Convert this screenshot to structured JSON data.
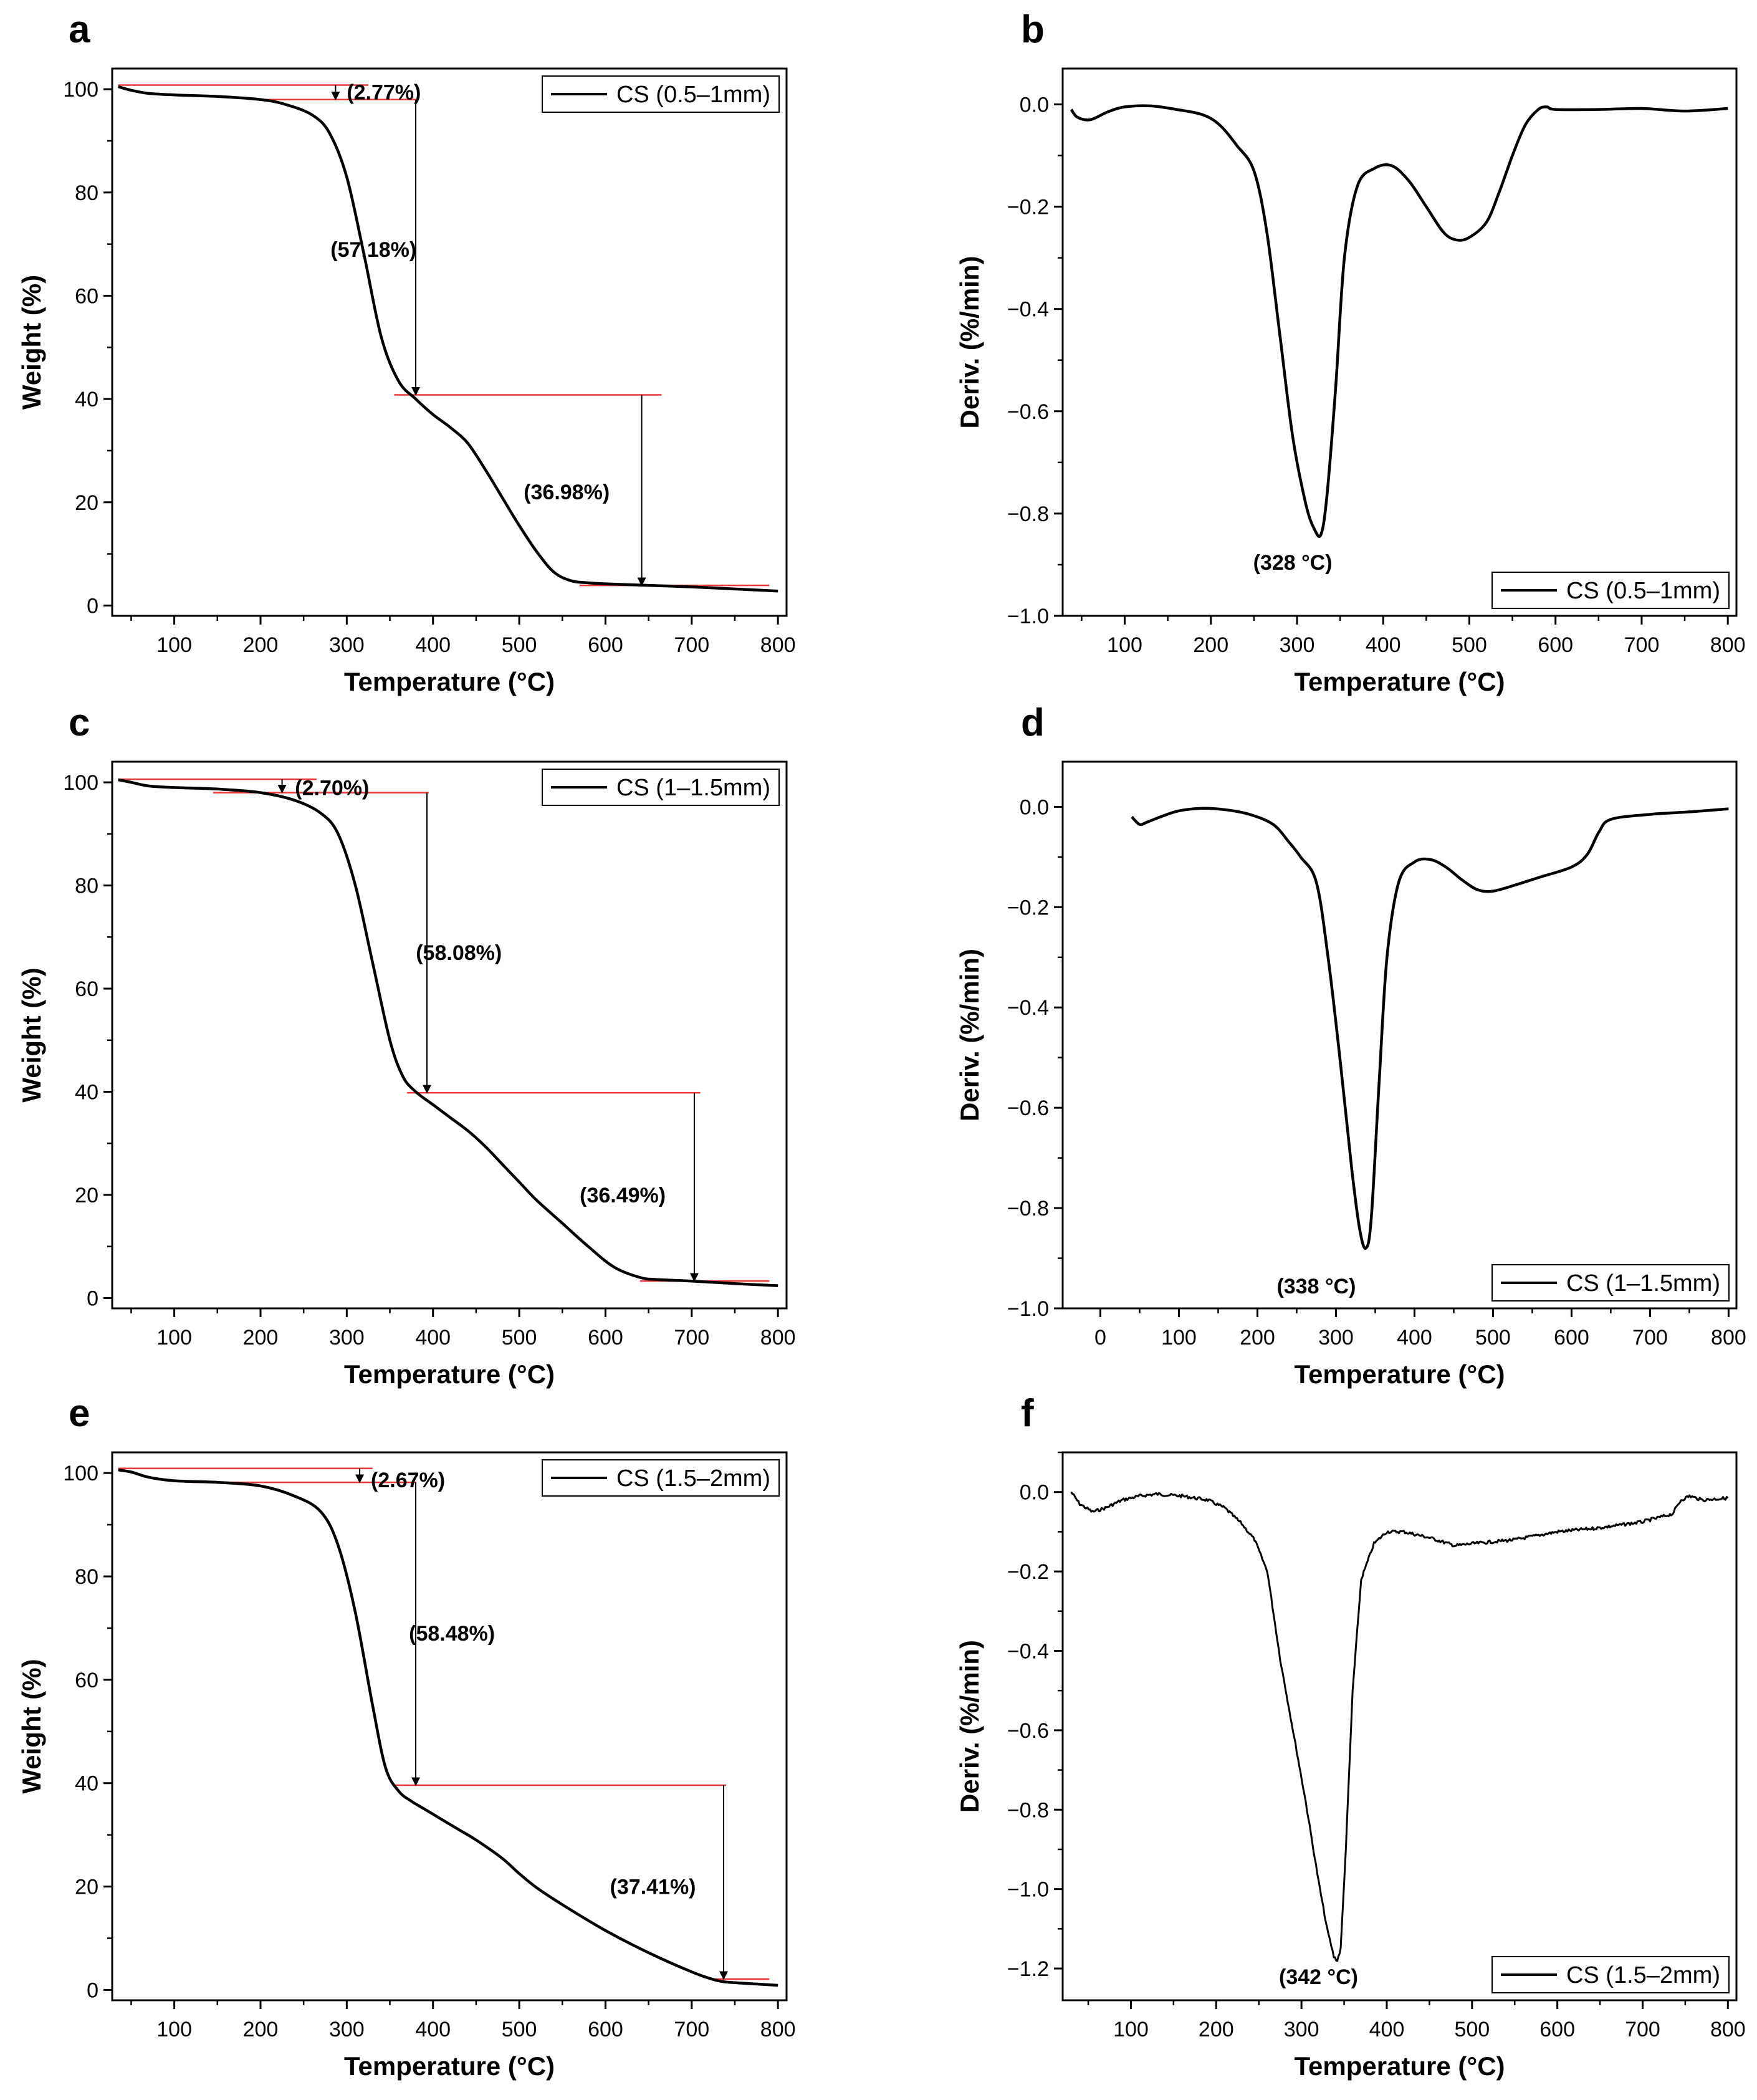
{
  "chart_data": [
    {
      "id": "a",
      "panel_label": "a",
      "type": "line",
      "xlabel": "Temperature (°C)",
      "ylabel": "Weight (%)",
      "xlim": [
        28,
        810
      ],
      "ylim": [
        -2,
        104
      ],
      "xticks": [
        100,
        200,
        300,
        400,
        500,
        600,
        700,
        800
      ],
      "yticks": [
        0,
        20,
        40,
        60,
        80,
        100
      ],
      "legend": "CS (0.5–1mm)",
      "legend_position": "top-right",
      "series": [
        {
          "name": "CS (0.5–1mm)",
          "x": [
            35,
            50,
            70,
            100,
            150,
            200,
            230,
            260,
            280,
            300,
            320,
            340,
            360,
            380,
            400,
            420,
            440,
            460,
            480,
            500,
            520,
            540,
            560,
            580,
            600,
            650,
            700,
            750,
            800
          ],
          "y": [
            100.5,
            99.8,
            99.2,
            98.9,
            98.6,
            98.0,
            97.0,
            95.0,
            91.5,
            83.0,
            68.0,
            52.0,
            43.5,
            40.0,
            37.0,
            34.5,
            31.5,
            26.5,
            21.0,
            15.5,
            10.5,
            6.5,
            4.8,
            4.4,
            4.2,
            3.9,
            3.6,
            3.2,
            2.8
          ]
        }
      ],
      "ref_lines": [
        {
          "y": 100.8,
          "x1": 35,
          "x2": 325
        },
        {
          "y": 98.0,
          "x1": 190,
          "x2": 380
        },
        {
          "y": 40.8,
          "x1": 355,
          "x2": 665
        },
        {
          "y": 3.9,
          "x1": 570,
          "x2": 790
        }
      ],
      "arrows": [
        {
          "x": 287,
          "y1": 100.8,
          "y2": 98.0
        },
        {
          "x": 380,
          "y1": 98.0,
          "y2": 40.8
        },
        {
          "x": 642,
          "y1": 40.8,
          "y2": 3.9
        }
      ],
      "annotations": [
        {
          "text": "(2.77%)",
          "x": 343,
          "y": 99.5
        },
        {
          "text": "(57.18%)",
          "x": 331,
          "y": 69
        },
        {
          "text": "(36.98%)",
          "x": 555,
          "y": 22
        }
      ]
    },
    {
      "id": "b",
      "panel_label": "b",
      "type": "line",
      "xlabel": "Temperature (°C)",
      "ylabel": "Deriv. (%/min)",
      "xlim": [
        28,
        810
      ],
      "ylim": [
        -1.0,
        0.07
      ],
      "xticks": [
        100,
        200,
        300,
        400,
        500,
        600,
        700,
        800
      ],
      "yticks": [
        0.0,
        -0.2,
        -0.4,
        -0.6,
        -0.8,
        -1.0
      ],
      "ytick_labels": [
        "0.0",
        "−0.2",
        "−0.4",
        "−0.6",
        "−0.8",
        "−1.0"
      ],
      "legend": "CS (0.5–1mm)",
      "legend_position": "bottom-right",
      "series": [
        {
          "name": "CS (0.5–1mm)",
          "x": [
            38,
            45,
            60,
            80,
            100,
            130,
            160,
            190,
            210,
            230,
            250,
            265,
            280,
            295,
            310,
            320,
            328,
            335,
            345,
            355,
            370,
            390,
            410,
            430,
            450,
            470,
            485,
            500,
            520,
            535,
            550,
            565,
            580,
            590,
            600,
            650,
            700,
            750,
            800
          ],
          "y": [
            -0.01,
            -0.025,
            -0.03,
            -0.015,
            -0.005,
            -0.003,
            -0.01,
            -0.02,
            -0.04,
            -0.08,
            -0.13,
            -0.25,
            -0.45,
            -0.65,
            -0.78,
            -0.83,
            -0.84,
            -0.76,
            -0.55,
            -0.3,
            -0.16,
            -0.125,
            -0.12,
            -0.15,
            -0.2,
            -0.25,
            -0.265,
            -0.26,
            -0.23,
            -0.17,
            -0.1,
            -0.04,
            -0.01,
            -0.005,
            -0.01,
            -0.01,
            -0.008,
            -0.013,
            -0.008
          ]
        }
      ],
      "annotations": [
        {
          "text": "(328 °C)",
          "x": 295,
          "y": -0.895
        }
      ]
    },
    {
      "id": "c",
      "panel_label": "c",
      "type": "line",
      "xlabel": "Temperature (°C)",
      "ylabel": "Weight (%)",
      "xlim": [
        28,
        810
      ],
      "ylim": [
        -2,
        104
      ],
      "xticks": [
        100,
        200,
        300,
        400,
        500,
        600,
        700,
        800
      ],
      "yticks": [
        0,
        20,
        40,
        60,
        80,
        100
      ],
      "legend": "CS (1–1.5mm)",
      "legend_position": "top-right",
      "series": [
        {
          "name": "CS (1–1.5mm)",
          "x": [
            35,
            50,
            70,
            100,
            150,
            200,
            240,
            270,
            290,
            310,
            330,
            350,
            365,
            380,
            400,
            420,
            440,
            460,
            480,
            500,
            520,
            550,
            580,
            610,
            640,
            660,
            700,
            750,
            800
          ],
          "y": [
            100.5,
            100,
            99.3,
            99.0,
            98.7,
            98.0,
            96.5,
            94.0,
            90.0,
            80.0,
            65.0,
            50.0,
            43.0,
            40.0,
            37.5,
            35.0,
            32.5,
            29.5,
            26.0,
            22.5,
            19.0,
            14.5,
            10.0,
            6.0,
            4.0,
            3.6,
            3.3,
            2.8,
            2.4
          ]
        }
      ],
      "ref_lines": [
        {
          "y": 100.6,
          "x1": 35,
          "x2": 265
        },
        {
          "y": 98.0,
          "x1": 145,
          "x2": 395
        },
        {
          "y": 39.8,
          "x1": 370,
          "x2": 710
        },
        {
          "y": 3.3,
          "x1": 640,
          "x2": 790
        }
      ],
      "arrows": [
        {
          "x": 225,
          "y1": 100.6,
          "y2": 98.0
        },
        {
          "x": 393,
          "y1": 98.0,
          "y2": 39.8
        },
        {
          "x": 703,
          "y1": 39.8,
          "y2": 3.3
        }
      ],
      "annotations": [
        {
          "text": "(2.70%)",
          "x": 283,
          "y": 99.0
        },
        {
          "text": "(58.08%)",
          "x": 430,
          "y": 67
        },
        {
          "text": "(36.49%)",
          "x": 620,
          "y": 20
        }
      ]
    },
    {
      "id": "d",
      "panel_label": "d",
      "type": "line",
      "xlabel": "Temperature (°C)",
      "ylabel": "Deriv. (%/min)",
      "xlim": [
        -48,
        810
      ],
      "ylim": [
        -1.0,
        0.09
      ],
      "xticks": [
        0,
        100,
        200,
        300,
        400,
        500,
        600,
        700,
        800
      ],
      "yticks": [
        0.0,
        -0.2,
        -0.4,
        -0.6,
        -0.8,
        -1.0
      ],
      "ytick_labels": [
        "0.0",
        "−0.2",
        "−0.4",
        "−0.6",
        "−0.8",
        "−1.0"
      ],
      "legend": "CS (1–1.5mm)",
      "legend_position": "bottom-right",
      "series": [
        {
          "name": "CS (1–1.5mm)",
          "x": [
            40,
            50,
            60,
            80,
            100,
            130,
            160,
            190,
            220,
            240,
            255,
            275,
            290,
            305,
            320,
            330,
            338,
            345,
            355,
            365,
            380,
            400,
            420,
            440,
            460,
            480,
            500,
            530,
            560,
            600,
            620,
            635,
            650,
            700,
            750,
            800
          ],
          "y": [
            -0.02,
            -0.035,
            -0.03,
            -0.018,
            -0.008,
            -0.003,
            -0.006,
            -0.015,
            -0.035,
            -0.07,
            -0.1,
            -0.15,
            -0.3,
            -0.5,
            -0.72,
            -0.84,
            -0.88,
            -0.82,
            -0.55,
            -0.3,
            -0.15,
            -0.11,
            -0.105,
            -0.12,
            -0.145,
            -0.165,
            -0.168,
            -0.155,
            -0.14,
            -0.12,
            -0.095,
            -0.05,
            -0.025,
            -0.015,
            -0.01,
            -0.004
          ]
        }
      ],
      "annotations": [
        {
          "text": "(338 °C)",
          "x": 275,
          "y": -0.955
        }
      ]
    },
    {
      "id": "e",
      "panel_label": "e",
      "type": "line",
      "xlabel": "Temperature (°C)",
      "ylabel": "Weight (%)",
      "xlim": [
        28,
        810
      ],
      "ylim": [
        -2,
        104
      ],
      "xticks": [
        100,
        200,
        300,
        400,
        500,
        600,
        700,
        800
      ],
      "yticks": [
        0,
        20,
        40,
        60,
        80,
        100
      ],
      "legend": "CS (1.5–2mm)",
      "legend_position": "top-right",
      "series": [
        {
          "name": "CS (1.5–2mm)",
          "x": [
            35,
            50,
            70,
            100,
            150,
            200,
            240,
            270,
            290,
            310,
            330,
            345,
            360,
            375,
            390,
            410,
            430,
            450,
            480,
            500,
            520,
            550,
            600,
            650,
            700,
            730,
            750,
            780,
            800
          ],
          "y": [
            100.6,
            100.2,
            99.2,
            98.5,
            98.2,
            97.5,
            95.5,
            92.5,
            86.0,
            73.0,
            55.0,
            43.0,
            38.5,
            36.5,
            35.0,
            33.0,
            31.0,
            29.0,
            25.5,
            22.5,
            19.8,
            16.5,
            11.5,
            7.2,
            3.5,
            1.8,
            1.4,
            1.1,
            0.9
          ]
        }
      ],
      "ref_lines": [
        {
          "y": 100.9,
          "x1": 35,
          "x2": 330
        },
        {
          "y": 98.2,
          "x1": 120,
          "x2": 380
        },
        {
          "y": 39.6,
          "x1": 355,
          "x2": 740
        },
        {
          "y": 2.1,
          "x1": 725,
          "x2": 790
        }
      ],
      "arrows": [
        {
          "x": 315,
          "y1": 100.9,
          "y2": 98.2
        },
        {
          "x": 380,
          "y1": 98.2,
          "y2": 39.6
        },
        {
          "x": 737,
          "y1": 39.6,
          "y2": 2.1
        }
      ],
      "annotations": [
        {
          "text": "(2.67%)",
          "x": 371,
          "y": 98.7
        },
        {
          "text": "(58.48%)",
          "x": 422,
          "y": 69
        },
        {
          "text": "(37.41%)",
          "x": 655,
          "y": 20
        }
      ]
    },
    {
      "id": "f",
      "panel_label": "f",
      "type": "line",
      "xlabel": "Temperature (°C)",
      "ylabel": "Deriv. (%/min)",
      "xlim": [
        20,
        810
      ],
      "ylim": [
        -1.28,
        0.1
      ],
      "xticks": [
        100,
        200,
        300,
        400,
        500,
        600,
        700,
        800
      ],
      "yticks": [
        0.0,
        -0.2,
        -0.4,
        -0.6,
        -0.8,
        -1.0,
        -1.2
      ],
      "ytick_labels": [
        "0.0",
        "−0.2",
        "−0.4",
        "−0.6",
        "−0.8",
        "−1.0",
        "−1.2"
      ],
      "legend": "CS (1.5–2mm)",
      "legend_position": "bottom-right",
      "noisy": true,
      "series": [
        {
          "name": "CS (1.5–2mm)",
          "x": [
            30,
            40,
            55,
            70,
            90,
            110,
            130,
            160,
            190,
            210,
            230,
            245,
            260,
            275,
            290,
            305,
            320,
            330,
            338,
            342,
            346,
            352,
            360,
            370,
            385,
            400,
            420,
            450,
            480,
            500,
            550,
            600,
            650,
            700,
            735,
            745,
            755,
            770,
            800
          ],
          "y": [
            0.0,
            -0.03,
            -0.05,
            -0.04,
            -0.02,
            -0.01,
            -0.005,
            -0.01,
            -0.02,
            -0.04,
            -0.08,
            -0.12,
            -0.2,
            -0.42,
            -0.6,
            -0.78,
            -0.98,
            -1.1,
            -1.17,
            -1.18,
            -1.15,
            -0.9,
            -0.5,
            -0.22,
            -0.13,
            -0.1,
            -0.1,
            -0.115,
            -0.135,
            -0.13,
            -0.12,
            -0.1,
            -0.09,
            -0.075,
            -0.055,
            -0.02,
            -0.01,
            -0.02,
            -0.015
          ]
        }
      ],
      "annotations": [
        {
          "text": "(342 °C)",
          "x": 320,
          "y": -1.22
        }
      ]
    }
  ]
}
